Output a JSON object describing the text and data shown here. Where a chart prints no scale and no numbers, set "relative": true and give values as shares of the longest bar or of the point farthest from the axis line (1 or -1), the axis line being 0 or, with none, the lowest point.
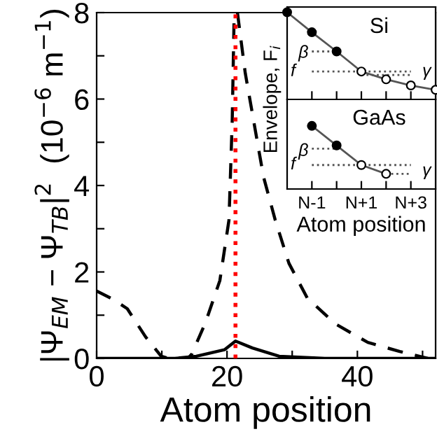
{
  "chart_data": [
    {
      "type": "line",
      "xlabel": "Atom position",
      "ylabel": "|Ψ$_{EM}$ − Ψ$_{TB}$|$^{2}$  (10$^{−6}$ m$^{−1}$)",
      "xlim": [
        0,
        52
      ],
      "xticks": [
        0,
        {
          "value": 10,
          "label": null
        },
        20,
        {
          "value": 30,
          "label": null
        },
        40,
        {
          "value": 50,
          "label": null
        }
      ],
      "ylim": [
        0,
        8
      ],
      "yticks": [
        0,
        {
          "value": 1,
          "label": null
        },
        2,
        {
          "value": 3,
          "label": null
        },
        4,
        {
          "value": 5,
          "label": null
        },
        6,
        {
          "value": 7,
          "label": null
        },
        8
      ],
      "legend": false,
      "ref_lines": [
        {
          "axis": "x",
          "value": 21.3,
          "color": "#ff0000",
          "line_style": "dotted"
        }
      ],
      "series": [
        {
          "color": "#000000",
          "line_style": "dashed",
          "x": [
            0,
            2.5,
            4.7,
            7.5,
            9.9,
            11,
            12,
            13,
            14,
            14.6,
            16.7,
            18.9,
            20.3,
            20.8,
            21.1,
            21.3,
            21.6,
            22.8,
            24.2,
            25.6,
            27.4,
            29.5,
            32.3,
            36.6,
            41.6,
            46.5,
            50.8
          ],
          "values": [
            1.56,
            1.37,
            1.15,
            0.5,
            0.05,
            0,
            0,
            0,
            0,
            0.1,
            0.83,
            1.8,
            3.2,
            5.5,
            8,
            null,
            8,
            6.6,
            5.4,
            4.2,
            3.2,
            2.2,
            1.4,
            0.8,
            0.37,
            0.16,
            0
          ]
        },
        {
          "color": "#000000",
          "line_style": "solid",
          "x": [
            0,
            12,
            15.3,
            19.6,
            21.3,
            23.9,
            28,
            35,
            52
          ],
          "values": [
            0,
            0,
            0.05,
            0.2,
            0.4,
            0.24,
            0.05,
            0,
            0
          ]
        }
      ]
    },
    {
      "type": "line",
      "title": "Si",
      "ylabel": "Envelope, F$_{i}$",
      "relative": true,
      "categories": [
        null,
        null,
        null,
        null,
        null,
        null,
        null
      ],
      "legend": false,
      "annotations": [
        "f",
        "β",
        "γ"
      ],
      "series": [
        {
          "color": "#555555",
          "marker": "circle",
          "values": [
            1,
            0.77,
            0.55,
            0.32,
            0.23,
            0.16,
            0.11
          ],
          "colors": [
            "#000000",
            "#000000",
            "#000000",
            "#ffffff",
            "#ffffff",
            "#ffffff",
            "#ffffff"
          ]
        },
        {
          "color": "#555555",
          "line_style": "dotted",
          "marker": "none",
          "values": [
            null,
            0.55,
            0.55,
            null,
            null,
            null,
            null
          ]
        },
        {
          "color": "#555555",
          "line_style": "dotted",
          "marker": "none",
          "values": [
            null,
            0.32,
            0.32,
            0.32,
            0.32,
            0.32,
            null
          ]
        },
        {
          "color": "#555555",
          "line_style": "dotted",
          "marker": "none",
          "values": [
            null,
            null,
            null,
            0.28,
            0.28,
            0.28,
            null
          ]
        }
      ]
    },
    {
      "type": "line",
      "title": "GaAs",
      "xlabel": "Atom position",
      "relative": true,
      "categories": [
        null,
        "N-1",
        null,
        "N+1",
        null,
        "N+3",
        null
      ],
      "tick_labels": "x",
      "legend": false,
      "annotations": [
        "f",
        "β",
        "γ"
      ],
      "series": [
        {
          "color": "#555555",
          "marker": "circle",
          "values": [
            null,
            1,
            0.69,
            0.38,
            0.24,
            null,
            null
          ],
          "colors": [
            "#000000",
            "#000000",
            "#000000",
            "#ffffff",
            "#ffffff",
            "#ffffff",
            "#ffffff"
          ]
        },
        {
          "color": "#555555",
          "line_style": "dotted",
          "marker": "none",
          "values": [
            null,
            0.64,
            0.64,
            null,
            null,
            null,
            null
          ]
        },
        {
          "color": "#555555",
          "line_style": "dotted",
          "marker": "none",
          "values": [
            null,
            0.38,
            0.38,
            0.38,
            0.38,
            0.38,
            null
          ]
        },
        {
          "color": "#555555",
          "line_style": "dotted",
          "marker": "none",
          "values": [
            null,
            null,
            null,
            null,
            0.24,
            0.24,
            null
          ]
        }
      ]
    }
  ]
}
